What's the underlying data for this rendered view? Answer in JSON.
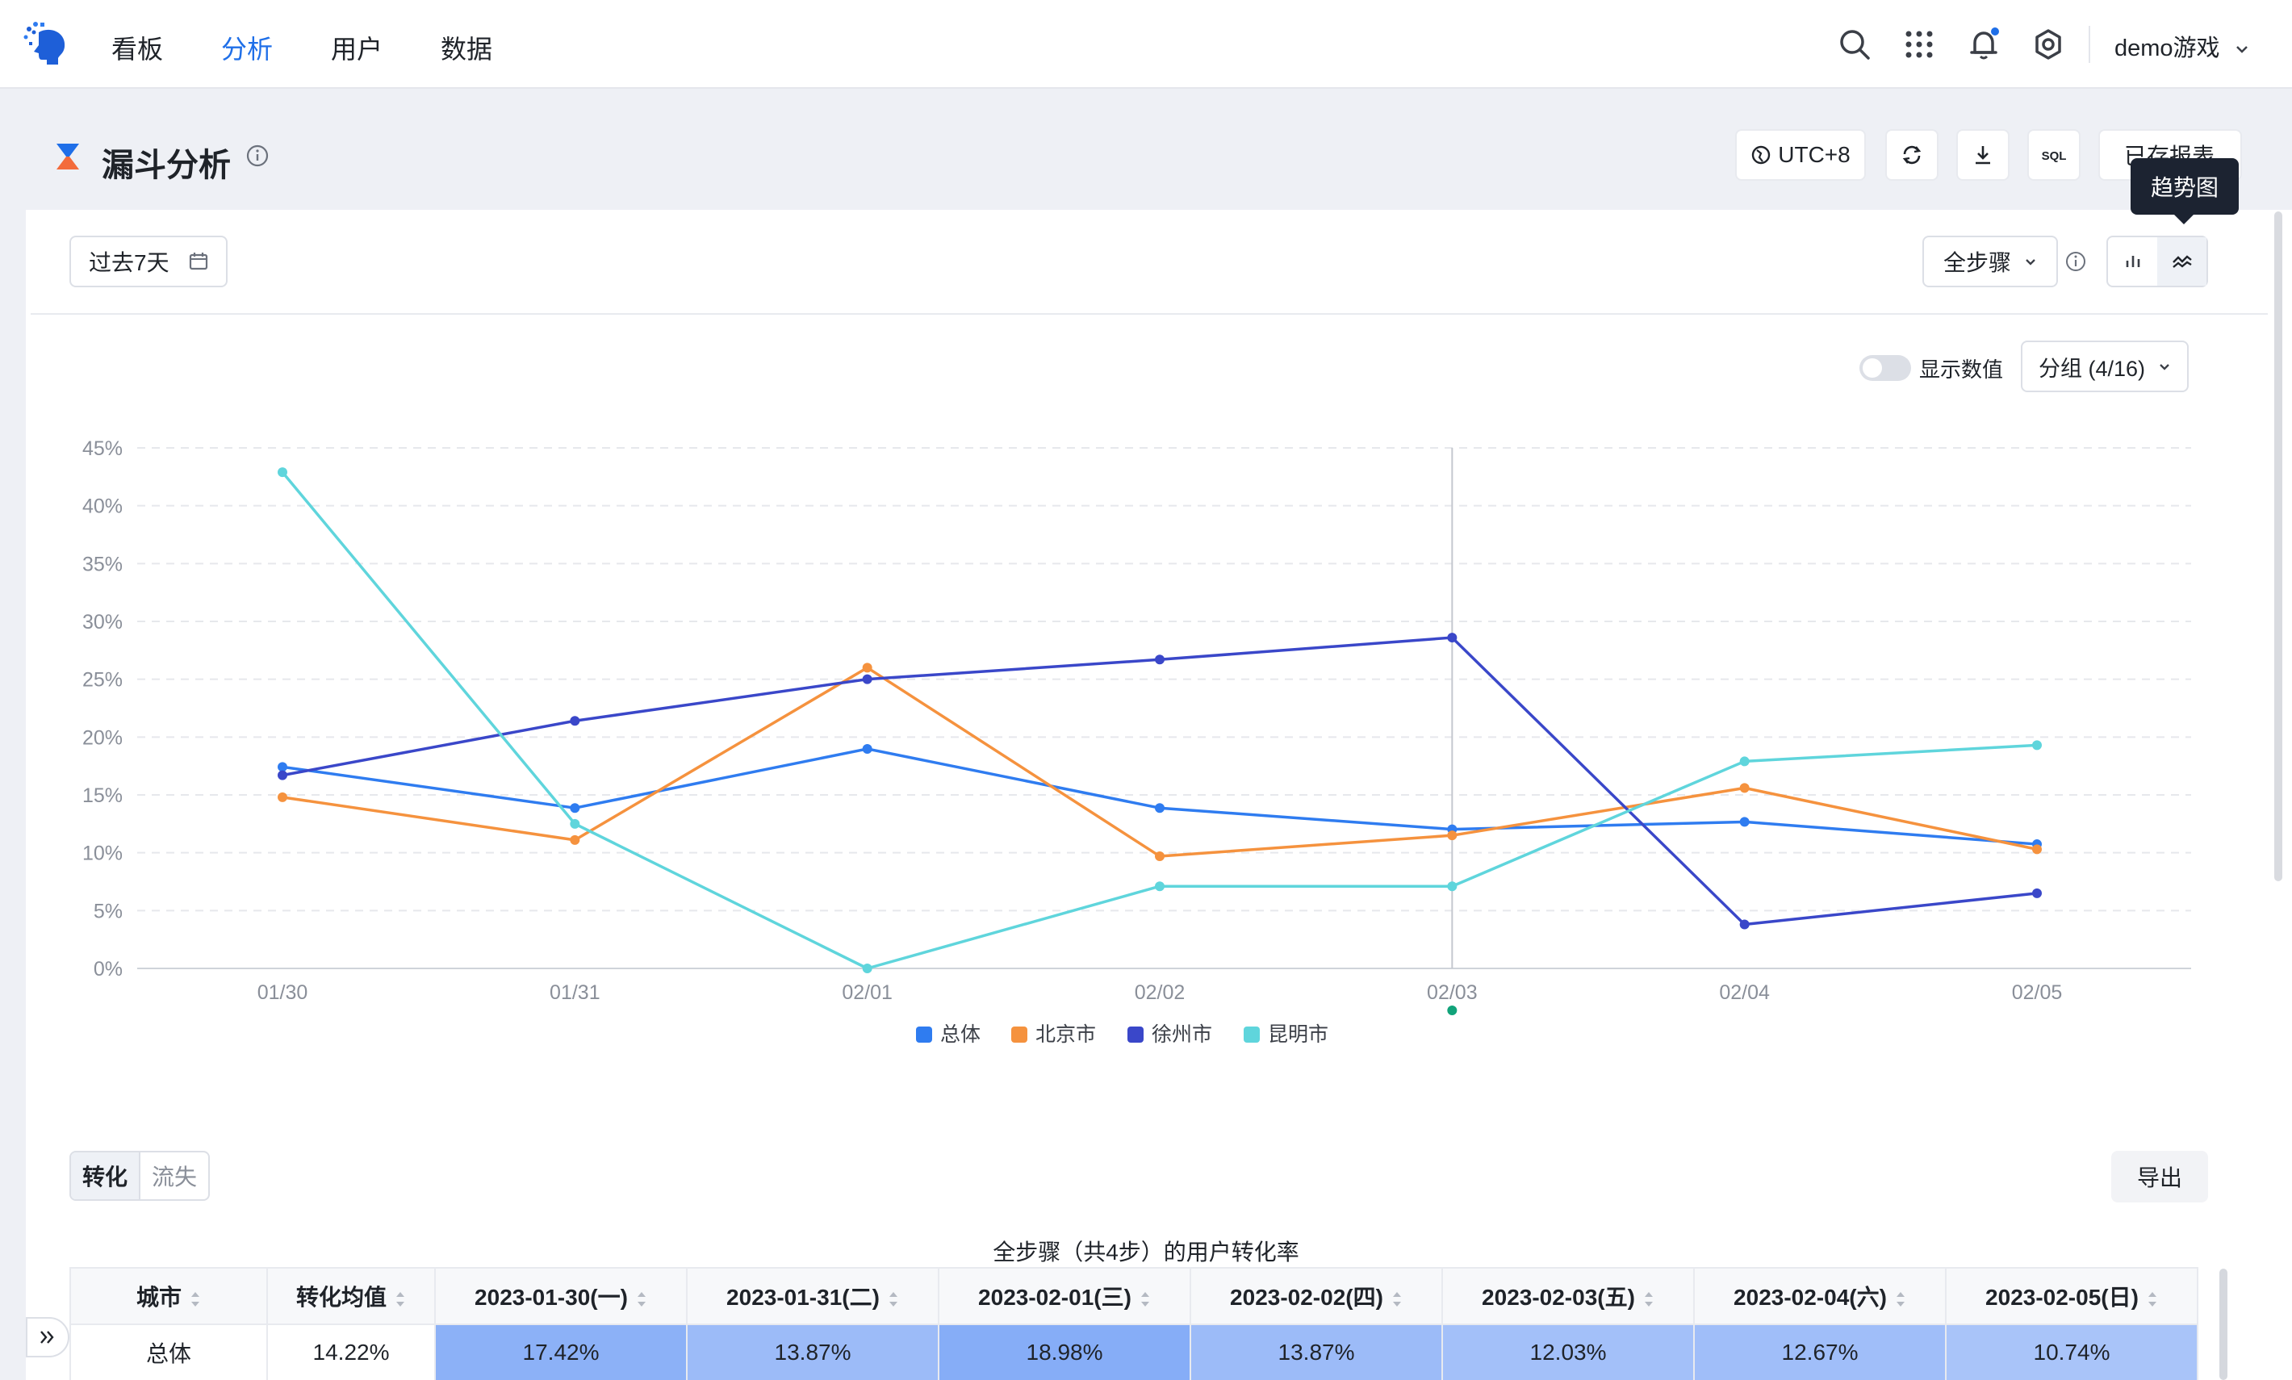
{
  "nav": {
    "items": [
      {
        "label": "看板",
        "active": false
      },
      {
        "label": "分析",
        "active": true
      },
      {
        "label": "用户",
        "active": false
      },
      {
        "label": "数据",
        "active": false
      }
    ],
    "user": "demo游戏",
    "icons": [
      "search-icon",
      "apps-grid-icon",
      "bell-icon",
      "gear-icon"
    ],
    "accent": "#1f6fe8"
  },
  "header": {
    "title": "漏斗分析",
    "timezone": "UTC+8",
    "saved_reports": "已存报表",
    "tooltip": "趋势图"
  },
  "filters": {
    "date_range": "过去7天",
    "steps": "全步骤",
    "show_values": "显示数值",
    "group": "分组 (4/16)"
  },
  "chart_data": {
    "type": "line",
    "x": [
      "01/30",
      "01/31",
      "02/01",
      "02/02",
      "02/03",
      "02/04",
      "02/05"
    ],
    "ylim": [
      0,
      45
    ],
    "yticks": [
      "0%",
      "5%",
      "10%",
      "15%",
      "20%",
      "25%",
      "30%",
      "35%",
      "40%",
      "45%"
    ],
    "highlight_index": 4,
    "legend_position": "bottom",
    "series": [
      {
        "name": "总体",
        "color": "#2f7cf0",
        "values": [
          17.42,
          13.87,
          18.98,
          13.87,
          12.03,
          12.67,
          10.74
        ]
      },
      {
        "name": "北京市",
        "color": "#f5923e",
        "values": [
          14.8,
          11.1,
          26.0,
          9.7,
          11.5,
          15.6,
          10.3
        ]
      },
      {
        "name": "徐州市",
        "color": "#3a47c9",
        "values": [
          16.7,
          21.4,
          25.0,
          26.7,
          28.6,
          3.8,
          6.5
        ]
      },
      {
        "name": "昆明市",
        "color": "#5fd5dc",
        "values": [
          42.9,
          12.5,
          0.0,
          7.1,
          7.1,
          17.9,
          19.3
        ]
      }
    ]
  },
  "bottom": {
    "tabs": [
      {
        "label": "转化",
        "active": true
      },
      {
        "label": "流失",
        "active": false
      }
    ],
    "export": "导出",
    "table_title": "全步骤（共4步）的用户转化率"
  },
  "table": {
    "headers": [
      "城市",
      "转化均值",
      "2023-01-30(一)",
      "2023-01-31(二)",
      "2023-02-01(三)",
      "2023-02-02(四)",
      "2023-02-03(五)",
      "2023-02-04(六)",
      "2023-02-05(日)"
    ],
    "rows": [
      {
        "cells": [
          "总体",
          "14.22%",
          "17.42%",
          "13.87%",
          "18.98%",
          "13.87%",
          "12.03%",
          "12.67%",
          "10.74%"
        ],
        "raw": [
          17.42,
          13.87,
          18.98,
          13.87,
          12.03,
          12.67,
          10.74
        ]
      }
    ]
  }
}
